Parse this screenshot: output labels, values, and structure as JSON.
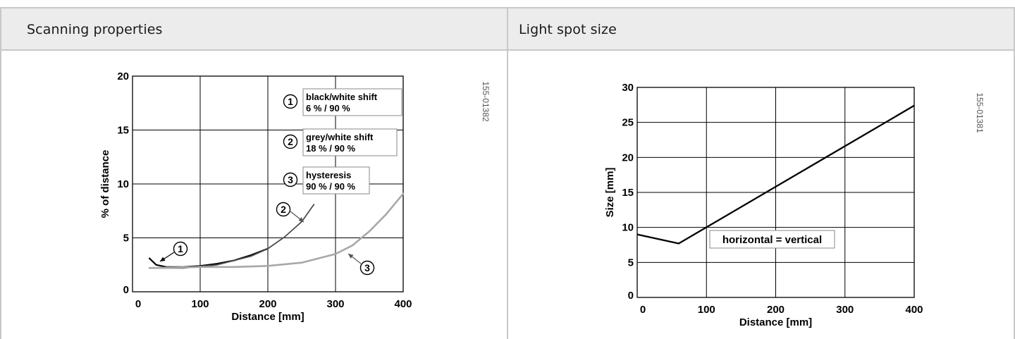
{
  "panels": {
    "left": {
      "title": "Scanning properties"
    },
    "right": {
      "title": "Light spot size"
    }
  },
  "chart_data": [
    {
      "type": "line",
      "xlabel": "Distance [mm]",
      "ylabel": "% of distance",
      "xlim": [
        0,
        400
      ],
      "ylim": [
        0,
        20
      ],
      "x_ticks": [
        0,
        100,
        200,
        300,
        400
      ],
      "y_ticks": [
        0,
        5,
        10,
        15,
        20
      ],
      "grid": true,
      "side_code": "155-01382",
      "legend": [
        {
          "marker": "1",
          "line1": "black/white shift",
          "line2": "6 % / 90 %"
        },
        {
          "marker": "2",
          "line1": "grey/white shift",
          "line2": "18 % / 90 %"
        },
        {
          "marker": "3",
          "line1": "hysteresis",
          "line2": "90 % / 90 %"
        }
      ],
      "series": [
        {
          "marker": "1",
          "color": "#000000",
          "x": [
            25,
            35,
            50,
            75,
            100,
            125,
            150,
            175,
            200
          ],
          "y": [
            3.1,
            2.5,
            2.3,
            2.3,
            2.4,
            2.6,
            2.9,
            3.4,
            4.0
          ]
        },
        {
          "marker": "2",
          "color": "#4d4d4d",
          "x": [
            25,
            75,
            125,
            175,
            200,
            225,
            250,
            268
          ],
          "y": [
            2.2,
            2.2,
            2.5,
            3.3,
            4.0,
            5.1,
            6.5,
            8.1
          ]
        },
        {
          "marker": "3",
          "color": "#a8a8a8",
          "x": [
            25,
            100,
            150,
            200,
            250,
            300,
            325,
            350,
            375,
            400
          ],
          "y": [
            2.2,
            2.3,
            2.3,
            2.4,
            2.7,
            3.5,
            4.3,
            5.6,
            7.2,
            9.1
          ]
        }
      ]
    },
    {
      "type": "line",
      "xlabel": "Distance [mm]",
      "ylabel": "Size [mm]",
      "xlim": [
        0,
        400
      ],
      "ylim": [
        0,
        30
      ],
      "x_ticks": [
        0,
        100,
        200,
        300,
        400
      ],
      "y_ticks": [
        0,
        5,
        10,
        15,
        20,
        25,
        30
      ],
      "grid": true,
      "side_code": "155-01381",
      "annotation": "horizontal = vertical",
      "series": [
        {
          "color": "#000000",
          "x": [
            0,
            60,
            400
          ],
          "y": [
            9,
            7.7,
            27.4
          ]
        }
      ]
    }
  ]
}
